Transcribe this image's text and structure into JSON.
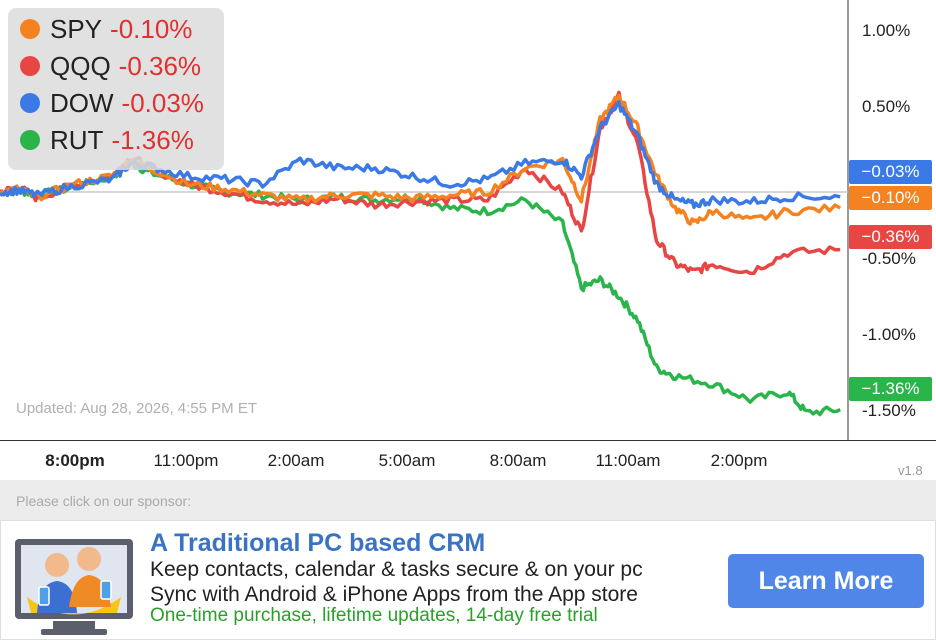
{
  "chart_data": {
    "type": "line",
    "x_tick_labels": [
      "8:00pm",
      "11:00pm",
      "2:00am",
      "5:00am",
      "8:00am",
      "11:00am",
      "2:00pm"
    ],
    "y_tick_labels": [
      "1.00%",
      "0.50%",
      "-0.50%",
      "-1.00%",
      "-1.50%"
    ],
    "y_ticks": [
      1.0,
      0.5,
      -0.5,
      -1.0,
      -1.5
    ],
    "ylim": [
      -1.55,
      1.2
    ],
    "x_range": [
      0,
      22.5
    ],
    "series": [
      {
        "name": "SPY",
        "color": "#f58220",
        "last": "-0.10%",
        "badge": "−0.10%",
        "points": [
          [
            0,
            0
          ],
          [
            0.5,
            0.02
          ],
          [
            1,
            -0.03
          ],
          [
            2,
            0.05
          ],
          [
            3,
            0.1
          ],
          [
            3.5,
            0.2
          ],
          [
            4,
            0.15
          ],
          [
            5,
            0.05
          ],
          [
            6,
            0.02
          ],
          [
            7,
            -0.02
          ],
          [
            8,
            -0.05
          ],
          [
            9,
            -0.02
          ],
          [
            10,
            -0.02
          ],
          [
            11,
            -0.04
          ],
          [
            12,
            -0.02
          ],
          [
            13,
            0.0
          ],
          [
            14,
            0.15
          ],
          [
            15,
            0.2
          ],
          [
            15.5,
            -0.05
          ],
          [
            16,
            0.45
          ],
          [
            16.5,
            0.6
          ],
          [
            17,
            0.4
          ],
          [
            17.5,
            0.1
          ],
          [
            18,
            -0.1
          ],
          [
            18.5,
            -0.2
          ],
          [
            19,
            -0.12
          ],
          [
            20,
            -0.18
          ],
          [
            21,
            -0.12
          ],
          [
            22.4,
            -0.1
          ]
        ]
      },
      {
        "name": "QQQ",
        "color": "#e84545",
        "last": "-0.36%",
        "badge": "−0.36%",
        "points": [
          [
            0,
            0
          ],
          [
            0.5,
            0.03
          ],
          [
            1,
            -0.04
          ],
          [
            2,
            0.05
          ],
          [
            3,
            0.1
          ],
          [
            3.5,
            0.22
          ],
          [
            4,
            0.15
          ],
          [
            5,
            0.05
          ],
          [
            6,
            0.0
          ],
          [
            7,
            -0.05
          ],
          [
            8,
            -0.08
          ],
          [
            9,
            -0.04
          ],
          [
            10,
            -0.08
          ],
          [
            11,
            -0.06
          ],
          [
            12,
            -0.05
          ],
          [
            13,
            -0.05
          ],
          [
            14,
            0.15
          ],
          [
            15,
            0.0
          ],
          [
            15.5,
            -0.25
          ],
          [
            16,
            0.4
          ],
          [
            16.5,
            0.6
          ],
          [
            17,
            0.3
          ],
          [
            17.5,
            -0.3
          ],
          [
            18,
            -0.45
          ],
          [
            18.5,
            -0.5
          ],
          [
            19,
            -0.45
          ],
          [
            20,
            -0.5
          ],
          [
            21,
            -0.38
          ],
          [
            22.4,
            -0.36
          ]
        ]
      },
      {
        "name": "DOW",
        "color": "#3b7ae6",
        "last": "-0.03%",
        "badge": "−0.03%",
        "points": [
          [
            0,
            0
          ],
          [
            0.5,
            0.01
          ],
          [
            1,
            -0.02
          ],
          [
            2,
            0.04
          ],
          [
            3,
            0.08
          ],
          [
            3.5,
            0.18
          ],
          [
            4,
            0.16
          ],
          [
            5,
            0.1
          ],
          [
            6,
            0.08
          ],
          [
            7,
            0.05
          ],
          [
            8,
            0.2
          ],
          [
            9,
            0.15
          ],
          [
            10,
            0.15
          ],
          [
            11,
            0.1
          ],
          [
            12,
            0.05
          ],
          [
            13,
            0.08
          ],
          [
            14,
            0.18
          ],
          [
            15,
            0.2
          ],
          [
            15.5,
            0.1
          ],
          [
            16,
            0.4
          ],
          [
            16.5,
            0.55
          ],
          [
            17,
            0.35
          ],
          [
            17.5,
            0.05
          ],
          [
            18,
            -0.05
          ],
          [
            18.5,
            -0.08
          ],
          [
            19,
            -0.05
          ],
          [
            20,
            -0.06
          ],
          [
            21,
            -0.03
          ],
          [
            22.4,
            -0.03
          ]
        ]
      },
      {
        "name": "RUT",
        "color": "#2ab54a",
        "last": "-1.36%",
        "badge": "−1.36%",
        "points": [
          [
            0,
            0
          ],
          [
            0.5,
            0.01
          ],
          [
            1,
            -0.02
          ],
          [
            2,
            0.03
          ],
          [
            3,
            0.1
          ],
          [
            3.5,
            0.18
          ],
          [
            4,
            0.12
          ],
          [
            5,
            0.05
          ],
          [
            6,
            0.0
          ],
          [
            7,
            -0.02
          ],
          [
            8,
            -0.05
          ],
          [
            9,
            -0.03
          ],
          [
            10,
            -0.05
          ],
          [
            11,
            -0.03
          ],
          [
            12,
            -0.1
          ],
          [
            13,
            -0.12
          ],
          [
            14,
            -0.05
          ],
          [
            15,
            -0.2
          ],
          [
            15.5,
            -0.6
          ],
          [
            16,
            -0.55
          ],
          [
            16.5,
            -0.65
          ],
          [
            17,
            -0.8
          ],
          [
            17.5,
            -1.1
          ],
          [
            18,
            -1.15
          ],
          [
            19,
            -1.2
          ],
          [
            20,
            -1.3
          ],
          [
            21,
            -1.25
          ],
          [
            21.5,
            -1.38
          ],
          [
            22.4,
            -1.36
          ]
        ]
      }
    ]
  },
  "legend": [
    {
      "name": "SPY",
      "value": "-0.10%",
      "color": "#f58220"
    },
    {
      "name": "QQQ",
      "value": "-0.36%",
      "color": "#e84545"
    },
    {
      "name": "DOW",
      "value": "-0.03%",
      "color": "#3b7ae6"
    },
    {
      "name": "RUT",
      "value": "-1.36%",
      "color": "#2ab54a"
    }
  ],
  "updated_text": "Updated: Aug 28, 2026, 4:55 PM ET",
  "version": "v1.8",
  "sponsor": {
    "label": "Please click on our sponsor:",
    "title": "A Traditional PC based CRM",
    "line1": "Keep contacts, calendar & tasks secure & on your pc",
    "line2": "Sync with Android & iPhone Apps from the App store",
    "line3": "One-time purchase, lifetime updates, 14-day free trial",
    "button": "Learn More",
    "logo_icon": "crm-people-monitor-icon"
  }
}
